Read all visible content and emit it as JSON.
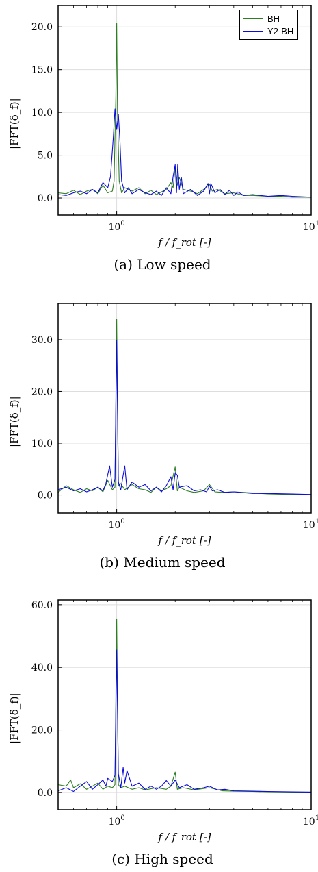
{
  "legend": [
    {
      "name": "BH",
      "color": "#2e7d23"
    },
    {
      "name": "Y2-BH",
      "color": "#0b0bd9"
    }
  ],
  "colors": {
    "BH": "#2e7d23",
    "Y2-BH": "#0b0bd9",
    "grid": "#dddddd"
  },
  "chart_data": [
    {
      "type": "line",
      "caption": "(a) Low speed",
      "xlabel": "f / f_rot [-]",
      "ylabel": "|FFT(δ_f)|",
      "xscale": "log",
      "xlim": [
        0.5,
        10
      ],
      "ylim": [
        -2,
        22.5
      ],
      "xticks": [
        1,
        10
      ],
      "xticklabels": [
        "10^0",
        "10^1"
      ],
      "yticks": [
        0,
        5,
        10,
        15,
        20
      ],
      "yticklabels": [
        "0.0",
        "5.0",
        "10.0",
        "15.0",
        "20.0"
      ],
      "grid": true,
      "legend_position": "top-right",
      "series": [
        {
          "name": "BH",
          "color": "#2e7d23",
          "points": [
            [
              0.5,
              0.6
            ],
            [
              0.55,
              0.5
            ],
            [
              0.6,
              0.9
            ],
            [
              0.65,
              0.4
            ],
            [
              0.7,
              0.8
            ],
            [
              0.75,
              1.0
            ],
            [
              0.8,
              0.5
            ],
            [
              0.85,
              1.5
            ],
            [
              0.9,
              0.6
            ],
            [
              0.95,
              0.8
            ],
            [
              0.97,
              2.0
            ],
            [
              0.99,
              12.0
            ],
            [
              1.0,
              20.4
            ],
            [
              1.01,
              10.0
            ],
            [
              1.03,
              2.0
            ],
            [
              1.06,
              0.6
            ],
            [
              1.1,
              1.2
            ],
            [
              1.2,
              0.8
            ],
            [
              1.3,
              1.2
            ],
            [
              1.4,
              0.5
            ],
            [
              1.5,
              0.9
            ],
            [
              1.6,
              0.4
            ],
            [
              1.8,
              1.0
            ],
            [
              1.9,
              1.8
            ],
            [
              1.95,
              1.2
            ],
            [
              2.0,
              3.6
            ],
            [
              2.05,
              1.5
            ],
            [
              2.1,
              2.4
            ],
            [
              2.2,
              1.0
            ],
            [
              2.4,
              0.8
            ],
            [
              2.6,
              0.5
            ],
            [
              2.8,
              1.0
            ],
            [
              3.0,
              1.6
            ],
            [
              3.1,
              0.8
            ],
            [
              3.3,
              1.0
            ],
            [
              3.6,
              0.5
            ],
            [
              4.0,
              0.6
            ],
            [
              4.5,
              0.3
            ],
            [
              5,
              0.3
            ],
            [
              6,
              0.2
            ],
            [
              7,
              0.2
            ],
            [
              8,
              0.1
            ],
            [
              10,
              0.1
            ]
          ]
        },
        {
          "name": "Y2-BH",
          "color": "#0b0bd9",
          "points": [
            [
              0.5,
              0.4
            ],
            [
              0.55,
              0.3
            ],
            [
              0.6,
              0.6
            ],
            [
              0.65,
              0.8
            ],
            [
              0.7,
              0.5
            ],
            [
              0.75,
              1.0
            ],
            [
              0.8,
              0.6
            ],
            [
              0.85,
              1.8
            ],
            [
              0.9,
              1.2
            ],
            [
              0.93,
              2.5
            ],
            [
              0.96,
              7.0
            ],
            [
              0.98,
              10.4
            ],
            [
              1.0,
              8.0
            ],
            [
              1.02,
              9.8
            ],
            [
              1.04,
              6.5
            ],
            [
              1.06,
              2.0
            ],
            [
              1.1,
              0.6
            ],
            [
              1.15,
              1.2
            ],
            [
              1.2,
              0.5
            ],
            [
              1.3,
              1.0
            ],
            [
              1.4,
              0.6
            ],
            [
              1.5,
              0.4
            ],
            [
              1.6,
              0.8
            ],
            [
              1.7,
              0.3
            ],
            [
              1.8,
              1.2
            ],
            [
              1.9,
              0.5
            ],
            [
              1.95,
              2.5
            ],
            [
              2.0,
              3.9
            ],
            [
              2.03,
              0.6
            ],
            [
              2.06,
              3.9
            ],
            [
              2.1,
              1.0
            ],
            [
              2.15,
              2.4
            ],
            [
              2.2,
              0.5
            ],
            [
              2.4,
              1.0
            ],
            [
              2.6,
              0.3
            ],
            [
              2.8,
              0.8
            ],
            [
              2.95,
              1.7
            ],
            [
              3.0,
              0.5
            ],
            [
              3.05,
              1.7
            ],
            [
              3.2,
              0.6
            ],
            [
              3.4,
              1.0
            ],
            [
              3.6,
              0.4
            ],
            [
              3.8,
              0.9
            ],
            [
              4.0,
              0.3
            ],
            [
              4.2,
              0.7
            ],
            [
              4.5,
              0.3
            ],
            [
              5,
              0.4
            ],
            [
              6,
              0.2
            ],
            [
              7,
              0.3
            ],
            [
              8,
              0.2
            ],
            [
              10,
              0.1
            ]
          ]
        }
      ]
    },
    {
      "type": "line",
      "caption": "(b) Medium speed",
      "xlabel": "f / f_rot [-]",
      "ylabel": "|FFT(δ_f)|",
      "xscale": "log",
      "xlim": [
        0.5,
        10
      ],
      "ylim": [
        -3.5,
        37
      ],
      "xticks": [
        1,
        10
      ],
      "xticklabels": [
        "10^0",
        "10^1"
      ],
      "yticks": [
        0,
        10,
        20,
        30
      ],
      "yticklabels": [
        "0.0",
        "10.0",
        "20.0",
        "30.0"
      ],
      "grid": true,
      "series": [
        {
          "name": "BH",
          "color": "#2e7d23",
          "points": [
            [
              0.5,
              0.5
            ],
            [
              0.55,
              1.8
            ],
            [
              0.6,
              1.0
            ],
            [
              0.65,
              0.5
            ],
            [
              0.7,
              1.2
            ],
            [
              0.75,
              0.8
            ],
            [
              0.8,
              1.5
            ],
            [
              0.85,
              0.6
            ],
            [
              0.9,
              2.8
            ],
            [
              0.95,
              1.0
            ],
            [
              0.98,
              1.5
            ],
            [
              1.0,
              34.0
            ],
            [
              1.02,
              1.8
            ],
            [
              1.05,
              2.2
            ],
            [
              1.1,
              1.0
            ],
            [
              1.2,
              2.0
            ],
            [
              1.3,
              1.2
            ],
            [
              1.4,
              1.0
            ],
            [
              1.5,
              0.5
            ],
            [
              1.6,
              1.5
            ],
            [
              1.7,
              0.8
            ],
            [
              1.8,
              1.2
            ],
            [
              1.9,
              1.8
            ],
            [
              2.0,
              5.4
            ],
            [
              2.05,
              0.8
            ],
            [
              2.1,
              1.5
            ],
            [
              2.3,
              0.8
            ],
            [
              2.5,
              0.5
            ],
            [
              2.8,
              0.8
            ],
            [
              3.0,
              2.0
            ],
            [
              3.2,
              0.6
            ],
            [
              3.5,
              0.5
            ],
            [
              4.0,
              0.6
            ],
            [
              5,
              0.4
            ],
            [
              6,
              0.2
            ],
            [
              8,
              0.1
            ],
            [
              10,
              0.1
            ]
          ]
        },
        {
          "name": "Y2-BH",
          "color": "#0b0bd9",
          "points": [
            [
              0.5,
              1.0
            ],
            [
              0.55,
              1.5
            ],
            [
              0.6,
              0.8
            ],
            [
              0.65,
              1.2
            ],
            [
              0.7,
              0.6
            ],
            [
              0.75,
              1.0
            ],
            [
              0.8,
              1.5
            ],
            [
              0.85,
              0.8
            ],
            [
              0.88,
              2.2
            ],
            [
              0.92,
              5.6
            ],
            [
              0.95,
              1.5
            ],
            [
              0.98,
              3.0
            ],
            [
              1.0,
              29.8
            ],
            [
              1.02,
              2.5
            ],
            [
              1.05,
              1.0
            ],
            [
              1.08,
              3.8
            ],
            [
              1.1,
              5.6
            ],
            [
              1.13,
              1.0
            ],
            [
              1.2,
              2.5
            ],
            [
              1.3,
              1.5
            ],
            [
              1.4,
              2.0
            ],
            [
              1.5,
              0.8
            ],
            [
              1.6,
              1.5
            ],
            [
              1.7,
              0.6
            ],
            [
              1.8,
              1.8
            ],
            [
              1.9,
              3.5
            ],
            [
              1.95,
              1.0
            ],
            [
              2.0,
              4.3
            ],
            [
              2.05,
              3.8
            ],
            [
              2.1,
              1.5
            ],
            [
              2.3,
              1.8
            ],
            [
              2.5,
              0.8
            ],
            [
              2.7,
              1.0
            ],
            [
              2.9,
              0.6
            ],
            [
              3.0,
              1.7
            ],
            [
              3.1,
              0.8
            ],
            [
              3.3,
              1.0
            ],
            [
              3.6,
              0.5
            ],
            [
              4.0,
              0.6
            ],
            [
              5,
              0.3
            ],
            [
              6,
              0.3
            ],
            [
              8,
              0.2
            ],
            [
              10,
              0.1
            ]
          ]
        }
      ]
    },
    {
      "type": "line",
      "caption": "(c) High speed",
      "xlabel": "f / f_rot [-]",
      "ylabel": "|FFT(δ_f)|",
      "xscale": "log",
      "xlim": [
        0.5,
        10
      ],
      "ylim": [
        -5.5,
        61.5
      ],
      "xticks": [
        1,
        10
      ],
      "xticklabels": [
        "10^0",
        "10^1"
      ],
      "yticks": [
        0,
        20,
        40,
        60
      ],
      "yticklabels": [
        "0.0",
        "20.0",
        "40.0",
        "60.0"
      ],
      "grid": true,
      "series": [
        {
          "name": "BH",
          "color": "#2e7d23",
          "points": [
            [
              0.5,
              2.5
            ],
            [
              0.55,
              2.0
            ],
            [
              0.58,
              4.0
            ],
            [
              0.6,
              1.5
            ],
            [
              0.65,
              2.8
            ],
            [
              0.7,
              1.0
            ],
            [
              0.75,
              2.0
            ],
            [
              0.8,
              3.0
            ],
            [
              0.85,
              1.0
            ],
            [
              0.9,
              2.0
            ],
            [
              0.95,
              1.5
            ],
            [
              0.98,
              2.5
            ],
            [
              1.0,
              55.5
            ],
            [
              1.02,
              2.5
            ],
            [
              1.05,
              1.5
            ],
            [
              1.1,
              2.0
            ],
            [
              1.2,
              1.0
            ],
            [
              1.3,
              1.5
            ],
            [
              1.4,
              0.8
            ],
            [
              1.6,
              1.5
            ],
            [
              1.8,
              1.0
            ],
            [
              1.9,
              2.0
            ],
            [
              2.0,
              6.5
            ],
            [
              2.05,
              1.0
            ],
            [
              2.2,
              1.5
            ],
            [
              2.5,
              0.8
            ],
            [
              3.0,
              1.5
            ],
            [
              3.5,
              0.5
            ],
            [
              4,
              0.4
            ],
            [
              5,
              0.3
            ],
            [
              6,
              0.2
            ],
            [
              8,
              0.1
            ],
            [
              10,
              0.1
            ]
          ]
        },
        {
          "name": "Y2-BH",
          "color": "#0b0bd9",
          "points": [
            [
              0.5,
              0.5
            ],
            [
              0.55,
              1.5
            ],
            [
              0.6,
              0.3
            ],
            [
              0.65,
              2.0
            ],
            [
              0.7,
              3.5
            ],
            [
              0.75,
              1.0
            ],
            [
              0.8,
              2.5
            ],
            [
              0.85,
              4.0
            ],
            [
              0.88,
              2.0
            ],
            [
              0.9,
              4.5
            ],
            [
              0.95,
              3.5
            ],
            [
              0.98,
              5.5
            ],
            [
              1.0,
              45.5
            ],
            [
              1.02,
              6.0
            ],
            [
              1.05,
              1.5
            ],
            [
              1.08,
              8.0
            ],
            [
              1.1,
              3.0
            ],
            [
              1.13,
              7.0
            ],
            [
              1.2,
              2.0
            ],
            [
              1.3,
              3.0
            ],
            [
              1.4,
              1.0
            ],
            [
              1.5,
              2.0
            ],
            [
              1.6,
              1.0
            ],
            [
              1.7,
              2.0
            ],
            [
              1.8,
              3.8
            ],
            [
              1.9,
              2.0
            ],
            [
              2.0,
              4.0
            ],
            [
              2.1,
              1.5
            ],
            [
              2.3,
              2.5
            ],
            [
              2.5,
              1.0
            ],
            [
              2.8,
              1.5
            ],
            [
              3.0,
              2.0
            ],
            [
              3.3,
              0.8
            ],
            [
              3.6,
              1.0
            ],
            [
              4,
              0.5
            ],
            [
              5,
              0.4
            ],
            [
              6,
              0.3
            ],
            [
              8,
              0.2
            ],
            [
              10,
              0.1
            ]
          ]
        }
      ]
    }
  ]
}
